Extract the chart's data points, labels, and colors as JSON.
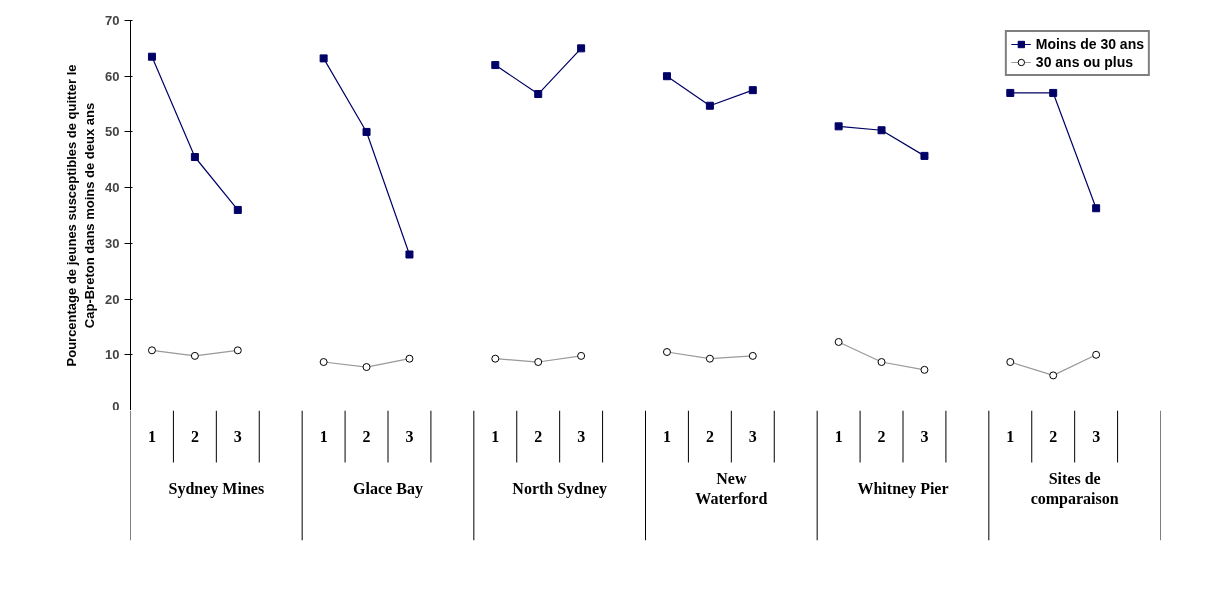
{
  "chart_data": {
    "type": "line",
    "ylabel": "Pourcentage de jeunes susceptibles de quitter le\nCap-Breton dans moins de deux ans",
    "categories": [
      "1",
      "2",
      "3",
      null,
      "1",
      "2",
      "3",
      null,
      "1",
      "2",
      "3",
      null,
      "1",
      "2",
      "3",
      null,
      "1",
      "2",
      "3",
      null,
      "1",
      "2",
      "3",
      null
    ],
    "annotations": [
      "Sydney Mines",
      "Glace Bay",
      "North Sydney",
      "New Waterford",
      "Whitney Pier",
      "Sites de comparaison"
    ],
    "series": [
      {
        "name": "Moins de 30 ans",
        "color": "#000066",
        "marker": "square",
        "values": [
          63.5,
          45.5,
          36,
          null,
          63.2,
          50,
          28,
          null,
          62,
          56.8,
          65,
          null,
          60,
          54.7,
          57.5,
          null,
          51,
          50.3,
          45.7,
          null,
          57,
          57,
          36.3,
          null
        ]
      },
      {
        "name": "30 ans ou plus",
        "color": "#999999",
        "marker": "circle",
        "values": [
          10.8,
          9.8,
          10.8,
          null,
          8.7,
          7.8,
          9.3,
          null,
          9.3,
          8.7,
          9.8,
          null,
          10.5,
          9.3,
          9.8,
          null,
          12.3,
          8.7,
          7.3,
          null,
          8.7,
          6.3,
          10,
          null
        ]
      }
    ],
    "ylim": [
      0,
      70
    ],
    "yticks": [
      0,
      10,
      20,
      30,
      40,
      50,
      60,
      70
    ],
    "grid": false,
    "legend": "top right"
  }
}
